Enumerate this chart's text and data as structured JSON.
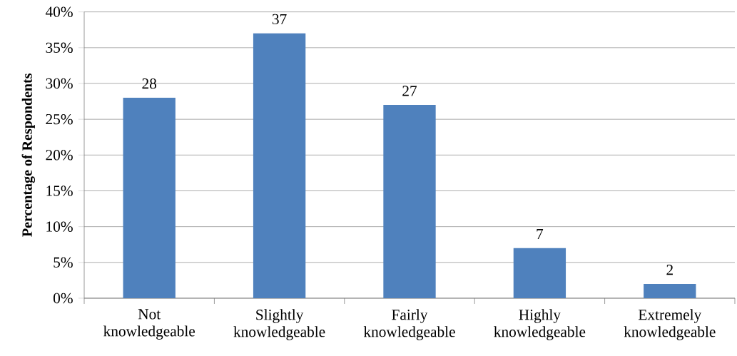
{
  "chart_data": {
    "type": "bar",
    "ylabel": "Percentage of Respondents",
    "categories": [
      "Not knowledgeable",
      "Slightly knowledgeable",
      "Fairly knowledgeable",
      "Highly knowledgeable",
      "Extremely knowledgeable"
    ],
    "values": [
      28,
      37,
      27,
      7,
      2
    ],
    "color": "#4f81bd",
    "data_labels": true,
    "ylim": [
      0,
      40
    ],
    "yticks": [
      {
        "value": 0,
        "label": "0%"
      },
      {
        "value": 5,
        "label": "5%"
      },
      {
        "value": 10,
        "label": "10%"
      },
      {
        "value": 15,
        "label": "15%"
      },
      {
        "value": 20,
        "label": "20%"
      },
      {
        "value": 25,
        "label": "25%"
      },
      {
        "value": 30,
        "label": "30%"
      },
      {
        "value": 35,
        "label": "35%"
      },
      {
        "value": 40,
        "label": "40%"
      }
    ],
    "grid": "y"
  }
}
